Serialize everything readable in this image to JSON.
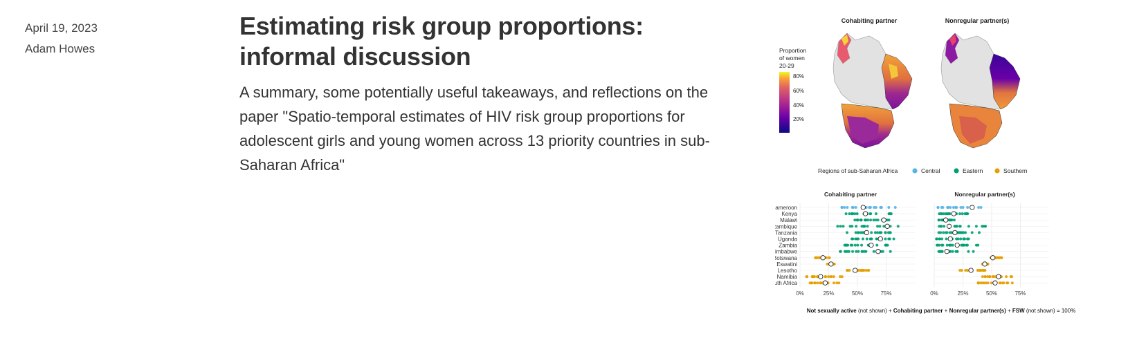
{
  "post": {
    "date": "April 19, 2023",
    "author": "Adam Howes",
    "title_line1": "Estimating risk group proportions:",
    "title_line2": "informal discussion",
    "description": "A summary, some potentially useful takeaways, and reflections on the paper \"Spatio-temporal estimates of HIV risk group proportions for adolescent girls and young women across 13 priority countries in sub-Saharan Africa\""
  },
  "figure": {
    "map_panels": [
      "Cohabiting partner",
      "Nonregular partner(s)"
    ],
    "map_legend": {
      "title_lines": [
        "Proportion",
        "of women",
        "20-29"
      ],
      "ticks": [
        "80%",
        "60%",
        "40%",
        "20%"
      ]
    },
    "region_legend": {
      "title": "Regions of sub-Saharan Africa",
      "items": [
        {
          "name": "Central",
          "color": "#56B4E9"
        },
        {
          "name": "Eastern",
          "color": "#009E73"
        },
        {
          "name": "Southern",
          "color": "#E69F00"
        }
      ]
    },
    "footer": {
      "b1": "Not sexually active",
      "t1": " (not shown) + ",
      "b2": "Cohabiting partner",
      "t2": " + ",
      "b3": "Nonregular partner(s)",
      "t3": " + ",
      "b4": "FSW",
      "t4": " (not shown) = 100%"
    }
  },
  "chart_data": {
    "type": "scatter",
    "panels": [
      "Cohabiting partner",
      "Nonregular partner(s)"
    ],
    "categories": [
      "Cameroon",
      "Kenya",
      "Malawi",
      "Mozambique",
      "Tanzania",
      "Uganda",
      "Zambia",
      "Zimbabwe",
      "Botswana",
      "Eswatini",
      "Lesotho",
      "Namibia",
      "South Africa"
    ],
    "regions": [
      "Central",
      "Eastern",
      "Eastern",
      "Eastern",
      "Eastern",
      "Eastern",
      "Eastern",
      "Eastern",
      "Southern",
      "Southern",
      "Southern",
      "Southern",
      "Southern"
    ],
    "x_ticks": [
      "0%",
      "25%",
      "50%",
      "75%"
    ],
    "xlim": [
      0,
      1
    ],
    "national_estimates": {
      "Cohabiting partner": [
        0.55,
        0.57,
        0.73,
        0.76,
        0.58,
        0.7,
        0.62,
        0.68,
        0.2,
        0.27,
        0.48,
        0.18,
        0.22
      ],
      "Nonregular partner(s)": [
        0.33,
        0.17,
        0.1,
        0.13,
        0.18,
        0.14,
        0.2,
        0.11,
        0.51,
        0.44,
        0.32,
        0.56,
        0.53
      ]
    },
    "district_ranges": {
      "Cohabiting partner": [
        [
          0.32,
          0.9
        ],
        [
          0.38,
          0.8
        ],
        [
          0.45,
          0.8
        ],
        [
          0.3,
          0.88
        ],
        [
          0.4,
          0.8
        ],
        [
          0.45,
          0.82
        ],
        [
          0.38,
          0.82
        ],
        [
          0.35,
          0.82
        ],
        [
          0.13,
          0.27
        ],
        [
          0.23,
          0.3
        ],
        [
          0.4,
          0.6
        ],
        [
          0.05,
          0.38
        ],
        [
          0.08,
          0.37
        ]
      ],
      "Nonregular partner(s)": [
        [
          0.02,
          0.45
        ],
        [
          0.02,
          0.3
        ],
        [
          0.02,
          0.18
        ],
        [
          0.02,
          0.48
        ],
        [
          0.02,
          0.4
        ],
        [
          0.02,
          0.3
        ],
        [
          0.02,
          0.4
        ],
        [
          0.02,
          0.36
        ],
        [
          0.48,
          0.6
        ],
        [
          0.42,
          0.48
        ],
        [
          0.22,
          0.45
        ],
        [
          0.42,
          0.68
        ],
        [
          0.38,
          0.68
        ]
      ]
    }
  }
}
